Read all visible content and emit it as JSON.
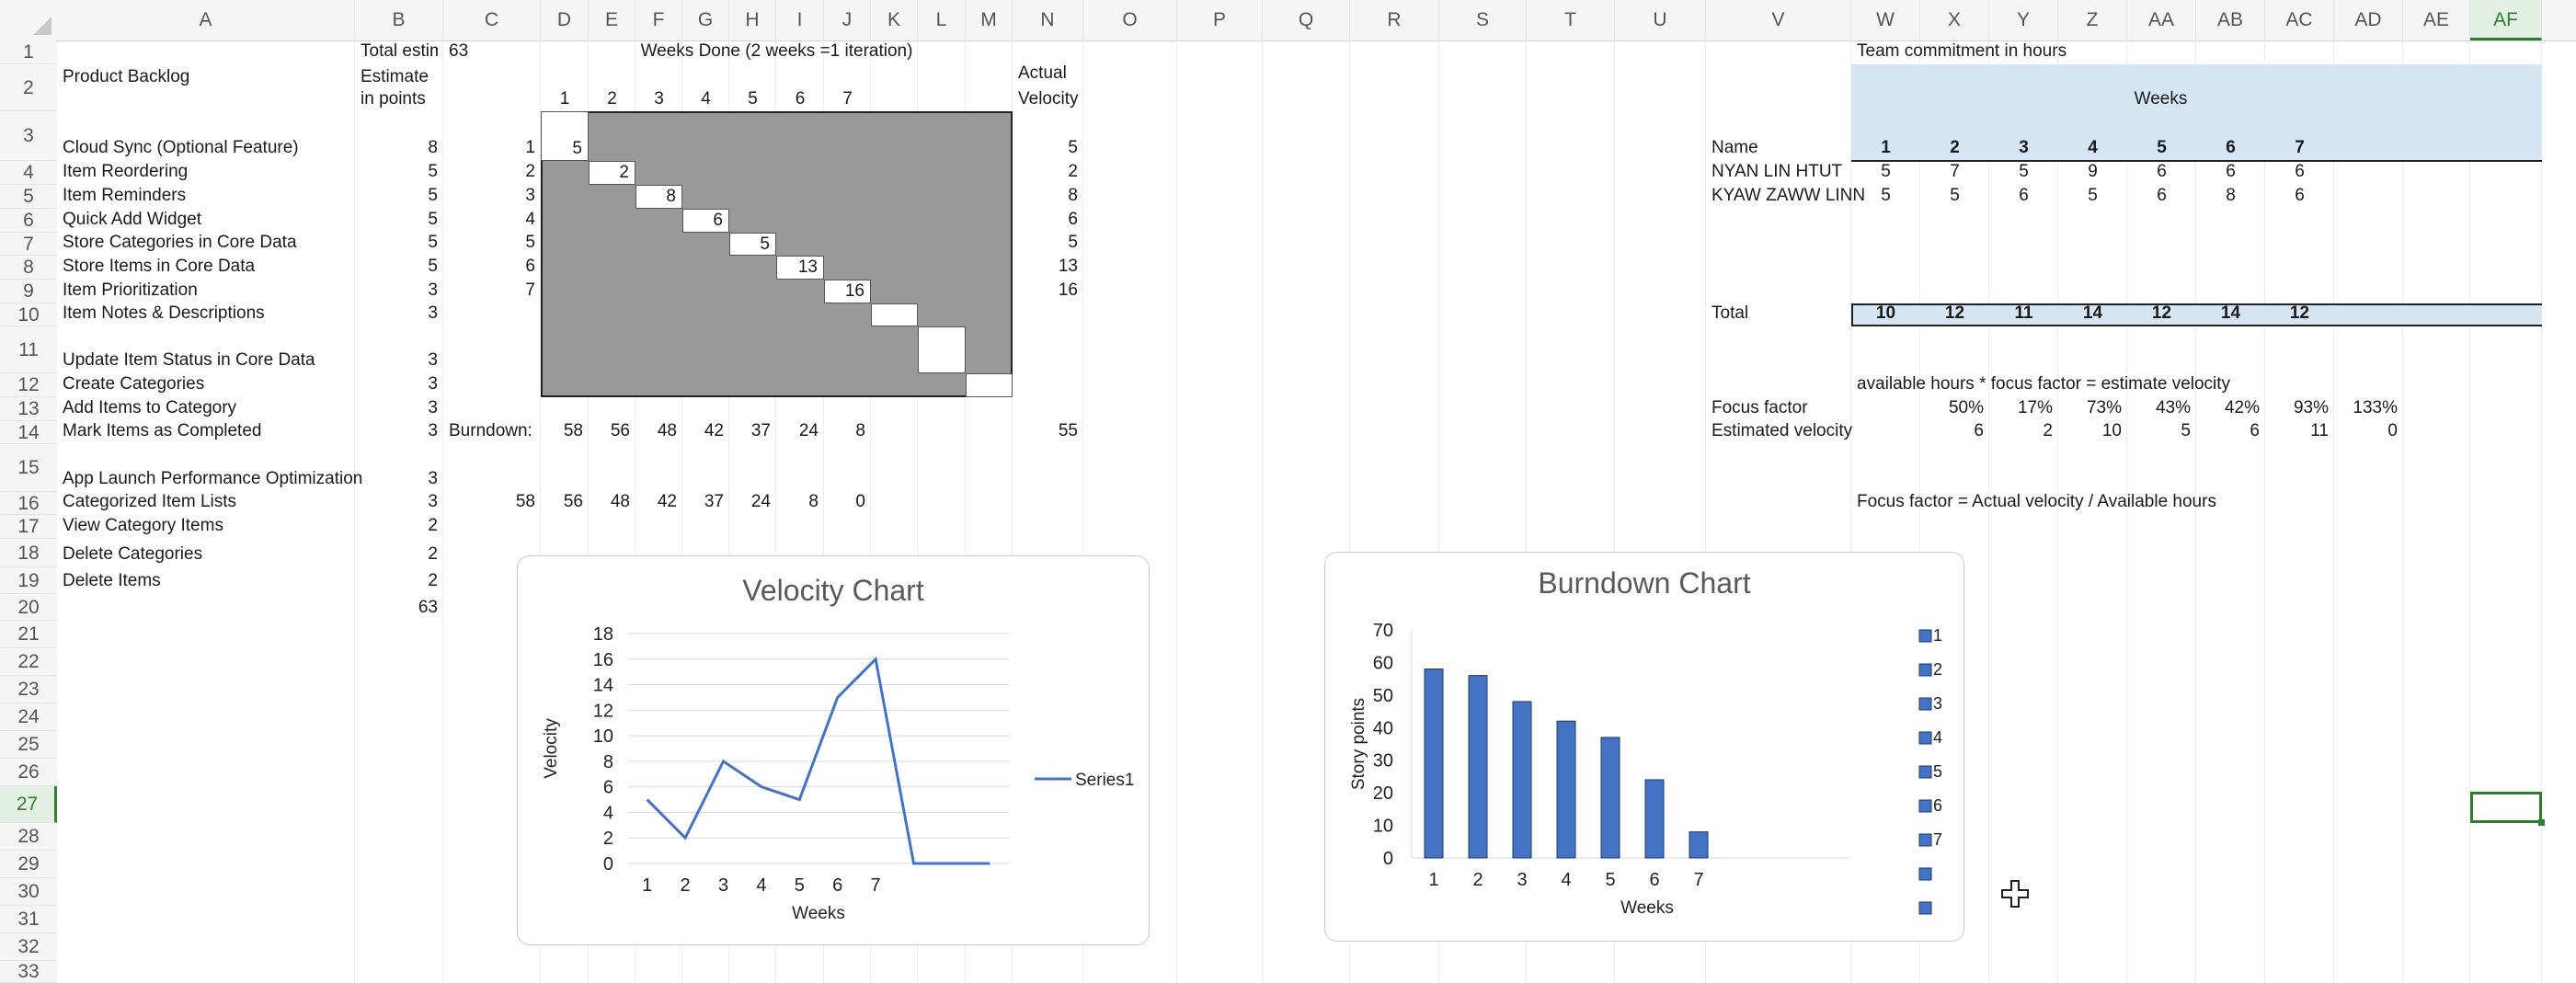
{
  "columns": [
    "A",
    "B",
    "C",
    "D",
    "E",
    "F",
    "G",
    "H",
    "I",
    "J",
    "K",
    "L",
    "M",
    "N",
    "O",
    "P",
    "Q",
    "R",
    "S",
    "T",
    "U",
    "V",
    "W",
    "X",
    "Y",
    "Z",
    "AA",
    "AB",
    "AC",
    "AD",
    "AE",
    "AF"
  ],
  "rows": [
    "1",
    "2",
    "3",
    "4",
    "5",
    "6",
    "7",
    "8",
    "9",
    "10",
    "11",
    "12",
    "13",
    "14",
    "15",
    "16",
    "17",
    "18",
    "19",
    "20",
    "21",
    "22",
    "23",
    "24",
    "25",
    "26",
    "27",
    "28",
    "29",
    "30",
    "31",
    "32",
    "33"
  ],
  "selected": {
    "column": "AF",
    "row": "27"
  },
  "header_text": {
    "total_estimate_label": "Total estim",
    "total_estimate_value": "63",
    "weeks_done": "Weeks Done (2 weeks =1 iteration)",
    "product_backlog": "Product Backlog",
    "estimate_line1": "Estimate",
    "estimate_line2": "in points",
    "actual_line1": "Actual",
    "actual_line2": "Velocity",
    "week_numbers": [
      "1",
      "2",
      "3",
      "4",
      "5",
      "6",
      "7"
    ]
  },
  "backlog": [
    {
      "name": "Cloud Sync (Optional Feature)",
      "points": "8",
      "iter": "1"
    },
    {
      "name": "Item Reordering",
      "points": "5",
      "iter": "2"
    },
    {
      "name": "Item Reminders",
      "points": "5",
      "iter": "3"
    },
    {
      "name": "Quick Add Widget",
      "points": "5",
      "iter": "4"
    },
    {
      "name": "Store Categories in Core Data",
      "points": "5",
      "iter": "5"
    },
    {
      "name": "Store Items in Core Data",
      "points": "5",
      "iter": "6"
    },
    {
      "name": "Item Prioritization",
      "points": "3",
      "iter": "7"
    },
    {
      "name": "Item Notes & Descriptions",
      "points": "3",
      "iter": ""
    },
    {
      "name": "Update Item Status in Core Data",
      "points": "3",
      "iter": ""
    },
    {
      "name": "Create Categories",
      "points": "3",
      "iter": ""
    },
    {
      "name": "Add Items to Category",
      "points": "3",
      "iter": ""
    },
    {
      "name": "Mark Items as Completed",
      "points": "3",
      "iter": "Burndown:"
    },
    {
      "name": "App Launch Performance Optimization",
      "points": "3",
      "iter": ""
    },
    {
      "name": "Categorized Item Lists",
      "points": "3",
      "iter": "58"
    },
    {
      "name": "View Category Items",
      "points": "2",
      "iter": ""
    },
    {
      "name": "Delete Categories",
      "points": "2",
      "iter": ""
    },
    {
      "name": "Delete Items",
      "points": "2",
      "iter": ""
    }
  ],
  "backlog_total": "63",
  "matrix_values": [
    "5",
    "2",
    "8",
    "6",
    "5",
    "13",
    "16"
  ],
  "actual_velocity": [
    "5",
    "2",
    "8",
    "6",
    "5",
    "13",
    "16"
  ],
  "burndown_row14": [
    "58",
    "56",
    "48",
    "42",
    "37",
    "24",
    "8"
  ],
  "burndown_row14_total": "55",
  "burndown_row16": [
    "56",
    "48",
    "42",
    "37",
    "24",
    "8",
    "0"
  ],
  "team": {
    "title": "Team commitment in hours",
    "weeks_label": "Weeks",
    "name_label": "Name",
    "week_numbers": [
      "1",
      "2",
      "3",
      "4",
      "5",
      "6",
      "7"
    ],
    "members": [
      {
        "name": "NYAN LIN HTUT",
        "hours": [
          "5",
          "7",
          "5",
          "9",
          "6",
          "6",
          "6"
        ]
      },
      {
        "name": "KYAW ZAWW LINN",
        "hours": [
          "5",
          "5",
          "6",
          "5",
          "6",
          "8",
          "6"
        ]
      }
    ],
    "total_label": "Total",
    "totals": [
      "10",
      "12",
      "11",
      "14",
      "12",
      "14",
      "12"
    ],
    "formula_note": "available hours  * focus factor = estimate velocity",
    "focus_label": "Focus factor",
    "focus_values": [
      "50%",
      "17%",
      "73%",
      "43%",
      "42%",
      "93%",
      "133%"
    ],
    "est_label": "Estimated velocity",
    "est_values": [
      "6",
      "2",
      "10",
      "5",
      "6",
      "11",
      "0"
    ],
    "focus_definition": "Focus factor = Actual velocity / Available hours"
  },
  "colors": {
    "accent": "#4472c4",
    "gray": "#999999",
    "blue_fill": "#d6e5f4",
    "selection": "#2e7d32"
  },
  "chart_data": [
    {
      "type": "line",
      "title": "Velocity Chart",
      "xlabel": "Weeks",
      "ylabel": "Velocity",
      "categories": [
        "1",
        "2",
        "3",
        "4",
        "5",
        "6",
        "7",
        "",
        "",
        ""
      ],
      "series": [
        {
          "name": "Series1",
          "values": [
            5,
            2,
            8,
            6,
            5,
            13,
            16,
            0,
            0,
            0
          ]
        }
      ],
      "ylim": [
        0,
        18
      ],
      "yticks": [
        "0",
        "2",
        "4",
        "6",
        "8",
        "10",
        "12",
        "14",
        "16",
        "18"
      ],
      "legend": "right",
      "grid": true
    },
    {
      "type": "bar",
      "title": "Burndown Chart",
      "xlabel": "Weeks",
      "ylabel": "Story points",
      "categories": [
        "1",
        "2",
        "3",
        "4",
        "5",
        "6",
        "7"
      ],
      "values": [
        58,
        56,
        48,
        42,
        37,
        24,
        8
      ],
      "ylim": [
        0,
        70
      ],
      "yticks": [
        "0",
        "10",
        "20",
        "30",
        "40",
        "50",
        "60",
        "70"
      ],
      "legend_entries": [
        "1",
        "2",
        "3",
        "4",
        "5",
        "6",
        "7",
        "",
        ""
      ],
      "legend": "right",
      "grid": false
    }
  ]
}
